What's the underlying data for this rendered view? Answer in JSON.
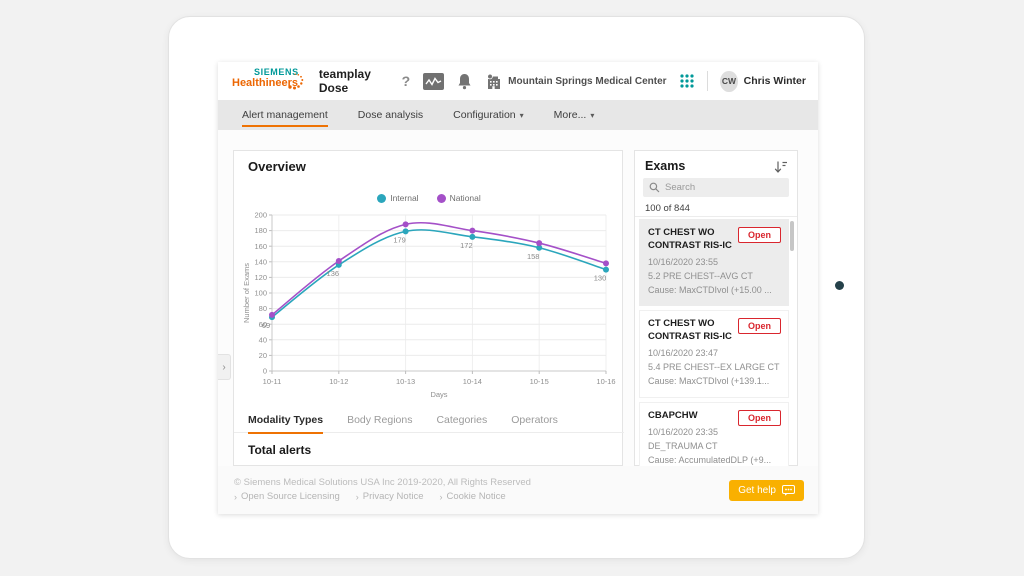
{
  "app": {
    "logo": {
      "line1": "SIEMENS",
      "line2": "Healthineers"
    },
    "product": "teamplay Dose",
    "org": "Mountain Springs Medical Center",
    "user": {
      "initials": "CW",
      "name": "Chris Winter"
    }
  },
  "nav": {
    "tabs": [
      {
        "label": "Alert management",
        "active": true,
        "dropdown": false
      },
      {
        "label": "Dose analysis",
        "active": false,
        "dropdown": false
      },
      {
        "label": "Configuration",
        "active": false,
        "dropdown": true
      },
      {
        "label": "More...",
        "active": false,
        "dropdown": true
      }
    ]
  },
  "overview": {
    "title": "Overview",
    "sub_tabs": [
      {
        "label": "Modality Types",
        "active": true
      },
      {
        "label": "Body Regions",
        "active": false
      },
      {
        "label": "Categories",
        "active": false
      },
      {
        "label": "Operators",
        "active": false
      }
    ],
    "total_alerts_label": "Total alerts"
  },
  "chart_data": {
    "type": "line",
    "title": "Overview",
    "x": [
      "10-11",
      "10-12",
      "10-13",
      "10-14",
      "10-15",
      "10-16"
    ],
    "xlabel": "Days",
    "ylabel": "Number of Exams",
    "ylim": [
      0,
      200
    ],
    "ytick_step": 20,
    "grid": true,
    "legend_position": "top-center",
    "series": [
      {
        "name": "Internal",
        "color": "#2BA6BC",
        "values": [
          69,
          136,
          179,
          172,
          158,
          130
        ],
        "labels": [
          "69",
          "136",
          "179",
          "172",
          "158",
          "130"
        ]
      },
      {
        "name": "National",
        "color": "#A450C8",
        "values": [
          72,
          141,
          188,
          180,
          164,
          138
        ]
      }
    ]
  },
  "exams": {
    "title": "Exams",
    "search_placeholder": "Search",
    "count": "100 of 844",
    "open_label": "Open",
    "cards": [
      {
        "title": "CT CHEST WO CONTRAST RIS-IC",
        "datetime": "10/16/2020 23:55",
        "protocol": "5.2 PRE CHEST--AVG CT",
        "cause": "Cause: MaxCTDIvol (+15.00 ...",
        "selected": true
      },
      {
        "title": "CT CHEST WO CONTRAST RIS-IC",
        "datetime": "10/16/2020 23:47",
        "protocol": "5.4 PRE CHEST--EX LARGE CT",
        "cause": "Cause: MaxCTDIvol (+139.1...",
        "selected": false
      },
      {
        "title": "CBAPCHW",
        "datetime": "10/16/2020 23:35",
        "protocol": "DE_TRAUMA CT",
        "cause": "Cause: AccumulatedDLP (+9...",
        "selected": false
      }
    ]
  },
  "footer": {
    "copyright": "© Siemens Medical Solutions USA Inc 2019-2020, All Rights Reserved",
    "links": [
      "Open Source Licensing",
      "Privacy Notice",
      "Cookie Notice"
    ],
    "get_help": "Get help"
  },
  "colors": {
    "siemens_teal": "#009999",
    "siemens_orange": "#EC6602",
    "active_tab_underline": "#EE7203",
    "series_internal": "#2BA6BC",
    "series_national": "#A450C8",
    "open_button_red": "#D9262E",
    "get_help_amber": "#F9B000"
  },
  "icons": [
    "help-icon",
    "dose-monitor-icon",
    "bell-icon",
    "hospital-icon",
    "apps-grid-icon",
    "sort-icon",
    "search-icon",
    "chevron-right-icon",
    "speech-bubble-icon"
  ]
}
